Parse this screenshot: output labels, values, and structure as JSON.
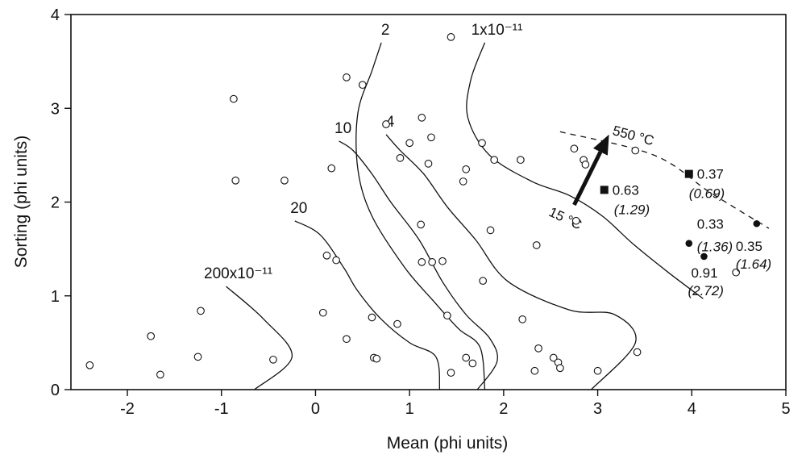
{
  "chart_data": {
    "type": "scatter",
    "xlabel": "Mean (phi units)",
    "ylabel": "Sorting (phi units)",
    "xlim": [
      -2.6,
      5
    ],
    "ylim": [
      0,
      4
    ],
    "xticks": [
      -2,
      -1,
      0,
      1,
      2,
      3,
      4,
      5
    ],
    "yticks": [
      0,
      1,
      2,
      3,
      4
    ],
    "grid": false,
    "series": [
      {
        "marker": "open-circle",
        "points": [
          [
            -2.4,
            0.26
          ],
          [
            -1.75,
            0.57
          ],
          [
            -1.65,
            0.16
          ],
          [
            -1.25,
            0.35
          ],
          [
            -1.22,
            0.84
          ],
          [
            -0.87,
            3.1
          ],
          [
            -0.85,
            2.23
          ],
          [
            -0.45,
            0.32
          ],
          [
            -0.33,
            2.23
          ],
          [
            0.08,
            0.82
          ],
          [
            0.12,
            1.43
          ],
          [
            0.17,
            2.36
          ],
          [
            0.22,
            1.38
          ],
          [
            0.33,
            3.33
          ],
          [
            0.33,
            0.54
          ],
          [
            0.5,
            3.25
          ],
          [
            0.6,
            0.77
          ],
          [
            0.62,
            0.34
          ],
          [
            0.65,
            0.33
          ],
          [
            0.75,
            2.83
          ],
          [
            0.87,
            0.7
          ],
          [
            0.9,
            2.47
          ],
          [
            1.0,
            2.63
          ],
          [
            1.12,
            1.76
          ],
          [
            1.13,
            2.9
          ],
          [
            1.13,
            1.36
          ],
          [
            1.2,
            2.41
          ],
          [
            1.23,
            2.69
          ],
          [
            1.24,
            1.36
          ],
          [
            1.35,
            1.37
          ],
          [
            1.4,
            0.79
          ],
          [
            1.44,
            3.76
          ],
          [
            1.44,
            0.18
          ],
          [
            1.57,
            2.22
          ],
          [
            1.6,
            2.35
          ],
          [
            1.6,
            0.34
          ],
          [
            1.67,
            0.28
          ],
          [
            1.77,
            2.63
          ],
          [
            1.78,
            1.16
          ],
          [
            1.86,
            1.7
          ],
          [
            1.9,
            2.45
          ],
          [
            2.18,
            2.45
          ],
          [
            2.2,
            0.75
          ],
          [
            2.33,
            0.2
          ],
          [
            2.35,
            1.54
          ],
          [
            2.37,
            0.44
          ],
          [
            2.53,
            0.34
          ],
          [
            2.58,
            0.29
          ],
          [
            2.6,
            0.23
          ],
          [
            2.75,
            2.57
          ],
          [
            2.77,
            1.8
          ],
          [
            2.85,
            2.45
          ],
          [
            2.87,
            2.4
          ],
          [
            3.0,
            0.2
          ],
          [
            3.4,
            2.55
          ],
          [
            3.42,
            0.4
          ],
          [
            4.47,
            1.25
          ]
        ]
      },
      {
        "marker": "filled-square",
        "points": [
          [
            3.07,
            2.13
          ],
          [
            3.97,
            2.3
          ]
        ]
      },
      {
        "marker": "filled-circle",
        "points": [
          [
            3.97,
            1.56
          ],
          [
            4.13,
            1.42
          ],
          [
            4.69,
            1.77
          ]
        ]
      }
    ],
    "data_labels": [
      {
        "x": 3.07,
        "y": 2.13,
        "value": "0.63",
        "sub": "(1.29)"
      },
      {
        "x": 3.97,
        "y": 2.3,
        "value": "0.37",
        "sub": "(0.69)"
      },
      {
        "x": 3.97,
        "y": 1.56,
        "value": "0.33",
        "sub": "(1.36)"
      },
      {
        "x": 4.13,
        "y": 1.42,
        "value": "0.91",
        "sub": "(2.72)"
      },
      {
        "x": 4.69,
        "y": 1.77,
        "value": "0.35",
        "sub": "(1.64)"
      }
    ],
    "contours": [
      {
        "label": "200x10⁻¹¹",
        "points": [
          [
            -0.65,
            0.0
          ],
          [
            -0.25,
            0.35
          ],
          [
            -0.55,
            0.75
          ],
          [
            -0.95,
            1.1
          ]
        ]
      },
      {
        "label": "20",
        "points": [
          [
            1.32,
            0.0
          ],
          [
            1.28,
            0.35
          ],
          [
            1.0,
            0.5
          ],
          [
            0.7,
            0.75
          ],
          [
            0.45,
            1.05
          ],
          [
            0.3,
            1.3
          ],
          [
            0.05,
            1.65
          ],
          [
            -0.22,
            1.8
          ]
        ]
      },
      {
        "label": "10",
        "points": [
          [
            1.72,
            0.0
          ],
          [
            1.93,
            0.3
          ],
          [
            1.85,
            0.55
          ],
          [
            1.6,
            0.8
          ],
          [
            1.35,
            1.15
          ],
          [
            1.1,
            1.6
          ],
          [
            0.8,
            2.0
          ],
          [
            0.6,
            2.3
          ],
          [
            0.4,
            2.55
          ],
          [
            0.25,
            2.65
          ]
        ]
      },
      {
        "label": "4",
        "points": [
          [
            2.93,
            0.0
          ],
          [
            3.4,
            0.5
          ],
          [
            3.18,
            0.8
          ],
          [
            2.7,
            0.85
          ],
          [
            2.05,
            1.15
          ],
          [
            1.7,
            1.6
          ],
          [
            1.4,
            1.95
          ],
          [
            1.15,
            2.3
          ],
          [
            0.9,
            2.55
          ],
          [
            0.75,
            2.72
          ]
        ]
      },
      {
        "label": "2",
        "points": [
          [
            1.8,
            0.0
          ],
          [
            1.75,
            0.45
          ],
          [
            1.52,
            0.65
          ],
          [
            1.25,
            0.95
          ],
          [
            0.95,
            1.3
          ],
          [
            0.6,
            1.85
          ],
          [
            0.45,
            2.35
          ],
          [
            0.45,
            2.95
          ],
          [
            0.6,
            3.4
          ],
          [
            0.7,
            3.7
          ]
        ]
      },
      {
        "label": "1x10⁻¹¹",
        "points": [
          [
            4.12,
            0.97
          ],
          [
            3.75,
            1.25
          ],
          [
            3.38,
            1.55
          ],
          [
            3.05,
            1.85
          ],
          [
            2.7,
            2.07
          ],
          [
            2.3,
            2.22
          ],
          [
            1.85,
            2.5
          ],
          [
            1.62,
            2.9
          ],
          [
            1.65,
            3.3
          ],
          [
            1.8,
            3.7
          ]
        ]
      }
    ],
    "dashed_line": [
      [
        2.6,
        2.75
      ],
      [
        3.6,
        2.5
      ],
      [
        4.2,
        2.1
      ],
      [
        4.82,
        1.72
      ]
    ],
    "arrow": {
      "from": [
        2.75,
        1.97
      ],
      "to": [
        3.12,
        2.72
      ]
    },
    "temperature_labels": [
      {
        "x": 3.15,
        "y": 2.72,
        "text": "550 °C",
        "angle": 15
      },
      {
        "x": 2.47,
        "y": 1.86,
        "text": "15 °C",
        "angle": 25
      }
    ]
  }
}
